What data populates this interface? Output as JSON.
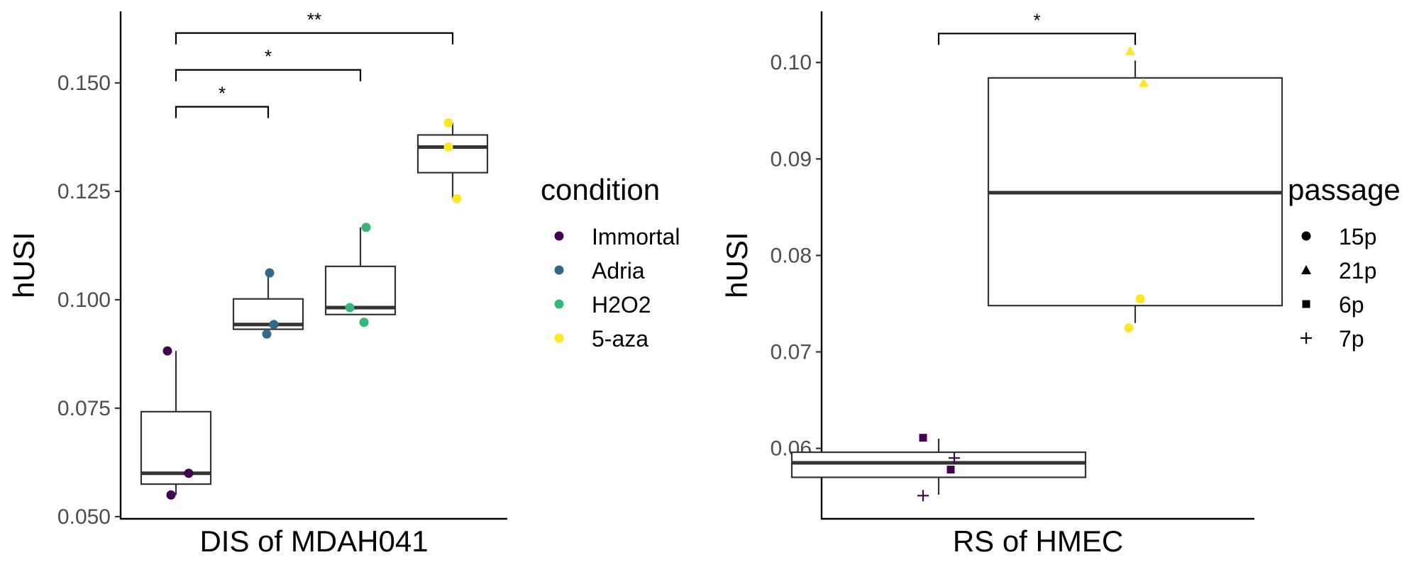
{
  "chart_data": [
    {
      "type": "box",
      "xlabel": "DIS of MDAH041",
      "ylabel": "hUSI",
      "ylim": [
        0.0495,
        0.1665
      ],
      "yticks": [
        0.05,
        0.075,
        0.1,
        0.125,
        0.15
      ],
      "ytick_labels": [
        "0.050",
        "0.075",
        "0.100",
        "0.125",
        "0.150"
      ],
      "grid": false,
      "legend": {
        "title": "condition",
        "placement": "right",
        "entries": [
          {
            "label": "Immortal",
            "color": "#440154"
          },
          {
            "label": "Adria",
            "color": "#31688E"
          },
          {
            "label": "H2O2",
            "color": "#35B779"
          },
          {
            "label": "5-aza",
            "color": "#FDE725"
          }
        ]
      },
      "groups": [
        {
          "name": "Immortal",
          "color": "#440154",
          "box": {
            "whisker_low": 0.055,
            "q1": 0.0575,
            "median": 0.06,
            "q3": 0.0742,
            "whisker_high": 0.0882
          },
          "points": [
            0.0882,
            0.06,
            0.055
          ]
        },
        {
          "name": "Adria",
          "color": "#31688E",
          "box": {
            "whisker_low": 0.0932,
            "q1": 0.0932,
            "median": 0.0943,
            "q3": 0.1002,
            "whisker_high": 0.1062
          },
          "points": [
            0.1062,
            0.0943,
            0.0921
          ]
        },
        {
          "name": "H2O2",
          "color": "#35B779",
          "box": {
            "whisker_low": 0.0966,
            "q1": 0.0966,
            "median": 0.0982,
            "q3": 0.1077,
            "whisker_high": 0.1167
          },
          "points": [
            0.1167,
            0.0982,
            0.0948
          ]
        },
        {
          "name": "5-aza",
          "color": "#FDE725",
          "box": {
            "whisker_low": 0.1233,
            "q1": 0.1293,
            "median": 0.1352,
            "q3": 0.138,
            "whisker_high": 0.1408
          },
          "points": [
            0.1408,
            0.1352,
            0.1233
          ]
        }
      ],
      "comparisons": [
        {
          "from": 0,
          "to": 1,
          "y": 0.1445,
          "label": "*"
        },
        {
          "from": 0,
          "to": 2,
          "y": 0.153,
          "label": "*"
        },
        {
          "from": 0,
          "to": 3,
          "y": 0.1615,
          "label": "**"
        }
      ]
    },
    {
      "type": "box",
      "xlabel": "RS of HMEC",
      "ylabel": "hUSI",
      "ylim": [
        0.0527,
        0.1053
      ],
      "yticks": [
        0.06,
        0.07,
        0.08,
        0.09,
        0.1
      ],
      "ytick_labels": [
        "0.06",
        "0.07",
        "0.08",
        "0.09",
        "0.10"
      ],
      "grid": false,
      "legend": {
        "title": "passage",
        "placement": "right",
        "entries": [
          {
            "label": "15p",
            "shape": "circle"
          },
          {
            "label": "21p",
            "shape": "triangle"
          },
          {
            "label": "6p",
            "shape": "square"
          },
          {
            "label": "7p",
            "shape": "plus"
          }
        ]
      },
      "groups": [
        {
          "name": "Immortal",
          "color": "#440154",
          "box": {
            "whisker_low": 0.0552,
            "q1": 0.057,
            "median": 0.0585,
            "q3": 0.0596,
            "whisker_high": 0.061
          },
          "points": [
            {
              "y": 0.0611,
              "shape": "square"
            },
            {
              "y": 0.059,
              "shape": "plus"
            },
            {
              "y": 0.0578,
              "shape": "square"
            },
            {
              "y": 0.0551,
              "shape": "plus"
            }
          ]
        },
        {
          "name": "5-aza",
          "color": "#FDE725",
          "box": {
            "whisker_low": 0.073,
            "q1": 0.0748,
            "median": 0.0865,
            "q3": 0.0984,
            "whisker_high": 0.1002
          },
          "points": [
            {
              "y": 0.1012,
              "shape": "triangle"
            },
            {
              "y": 0.0979,
              "shape": "triangle"
            },
            {
              "y": 0.0755,
              "shape": "circle"
            },
            {
              "y": 0.0725,
              "shape": "circle"
            }
          ]
        }
      ],
      "comparisons": [
        {
          "from": 0,
          "to": 1,
          "y": 0.103,
          "label": "*"
        }
      ]
    }
  ]
}
